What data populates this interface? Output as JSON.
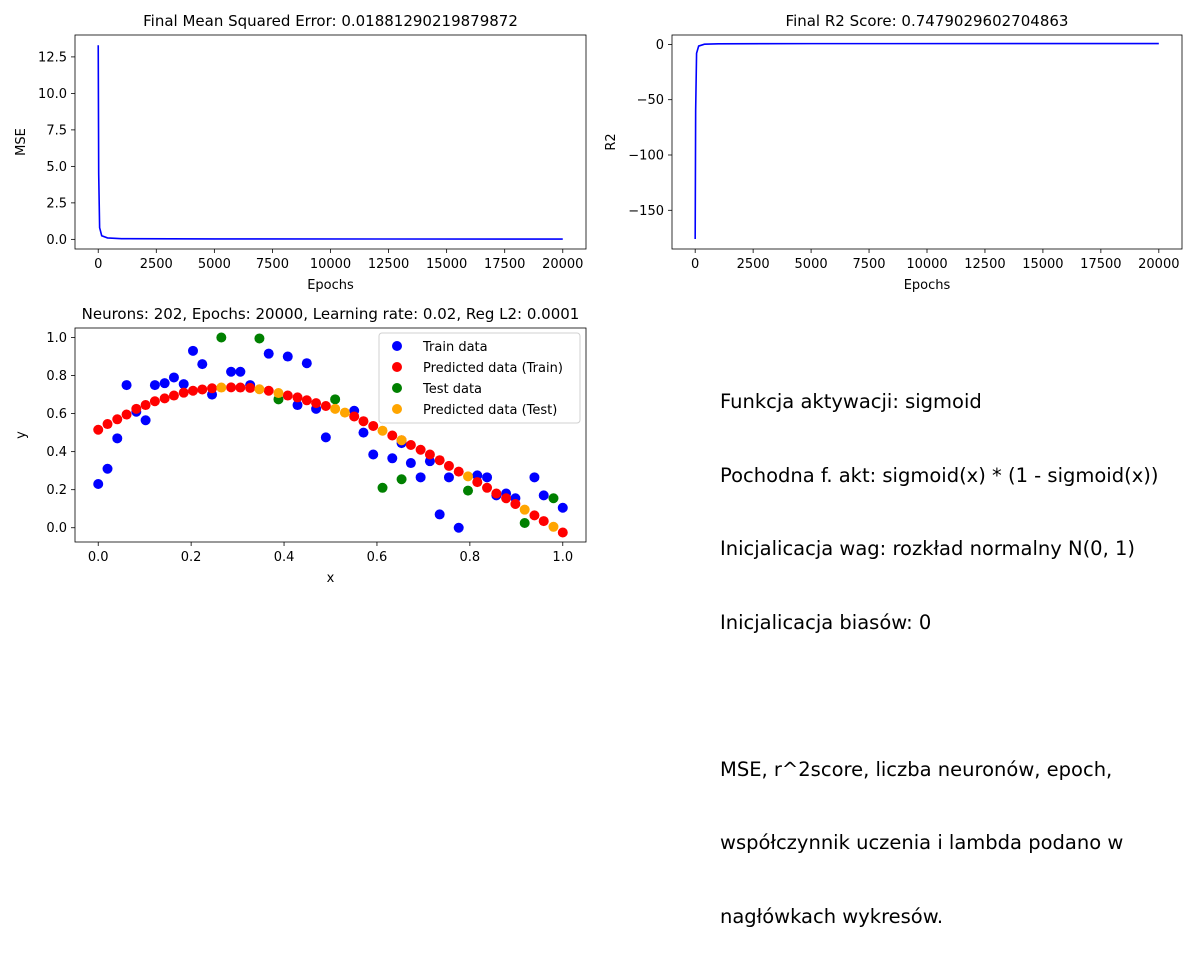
{
  "chart_data": [
    {
      "type": "line",
      "title": "Final Mean Squared Error: 0.01881290219879872",
      "xlabel": "Epochs",
      "ylabel": "MSE",
      "xlim": [
        -1000,
        21000
      ],
      "ylim": [
        -0.66,
        14.0
      ],
      "xticks": [
        0,
        2500,
        5000,
        7500,
        10000,
        12500,
        15000,
        17500,
        20000
      ],
      "yticks": [
        0.0,
        2.5,
        5.0,
        7.5,
        10.0,
        12.5
      ],
      "ytick_labels": [
        "0.0",
        "2.5",
        "5.0",
        "7.5",
        "10.0",
        "12.5"
      ],
      "color": "#0000ff",
      "series": [
        {
          "x": [
            0,
            20,
            60,
            150,
            400,
            1000,
            5000,
            20000
          ],
          "y": [
            13.3,
            4.5,
            0.8,
            0.25,
            0.1,
            0.05,
            0.03,
            0.0188
          ]
        }
      ]
    },
    {
      "type": "line",
      "title": "Final R2 Score: 0.7479029602704863",
      "xlabel": "Epochs",
      "ylabel": "R2",
      "xlim": [
        -1000,
        21000
      ],
      "ylim": [
        -185,
        8.5
      ],
      "xticks": [
        0,
        2500,
        5000,
        7500,
        10000,
        12500,
        15000,
        17500,
        20000
      ],
      "yticks": [
        0,
        -50,
        -100,
        -150
      ],
      "ytick_labels": [
        "0",
        "−50",
        "−100",
        "−150"
      ],
      "color": "#0000ff",
      "series": [
        {
          "x": [
            0,
            20,
            60,
            150,
            400,
            1000,
            5000,
            20000
          ],
          "y": [
            -176,
            -60,
            -8,
            -1.5,
            0.2,
            0.55,
            0.7,
            0.748
          ]
        }
      ]
    },
    {
      "type": "scatter",
      "title": "Neurons: 202, Epochs: 20000, Learning rate: 0.02, Reg L2: 0.0001",
      "xlabel": "x",
      "ylabel": "y",
      "xlim": [
        -0.05,
        1.05
      ],
      "ylim": [
        -0.075,
        1.05
      ],
      "xticks": [
        0.0,
        0.2,
        0.4,
        0.6,
        0.8,
        1.0
      ],
      "yticks": [
        0.0,
        0.2,
        0.4,
        0.6,
        0.8,
        1.0
      ],
      "legend": {
        "placement": "upper right",
        "entries": [
          "Train data",
          "Predicted data (Train)",
          "Test data",
          "Predicted data (Test)"
        ]
      },
      "series": [
        {
          "name": "Train data",
          "color": "#0000ff",
          "points": [
            [
              0.0,
              0.23
            ],
            [
              0.02,
              0.31
            ],
            [
              0.041,
              0.47
            ],
            [
              0.061,
              0.75
            ],
            [
              0.082,
              0.61
            ],
            [
              0.102,
              0.565
            ],
            [
              0.122,
              0.75
            ],
            [
              0.143,
              0.76
            ],
            [
              0.163,
              0.79
            ],
            [
              0.184,
              0.755
            ],
            [
              0.204,
              0.93
            ],
            [
              0.224,
              0.86
            ],
            [
              0.245,
              0.7
            ],
            [
              0.286,
              0.82
            ],
            [
              0.306,
              0.82
            ],
            [
              0.327,
              0.75
            ],
            [
              0.367,
              0.915
            ],
            [
              0.408,
              0.9
            ],
            [
              0.429,
              0.645
            ],
            [
              0.449,
              0.865
            ],
            [
              0.469,
              0.625
            ],
            [
              0.49,
              0.475
            ],
            [
              0.551,
              0.615
            ],
            [
              0.571,
              0.5
            ],
            [
              0.592,
              0.385
            ],
            [
              0.633,
              0.365
            ],
            [
              0.653,
              0.445
            ],
            [
              0.673,
              0.34
            ],
            [
              0.694,
              0.265
            ],
            [
              0.714,
              0.35
            ],
            [
              0.735,
              0.07
            ],
            [
              0.755,
              0.265
            ],
            [
              0.776,
              0.0
            ],
            [
              0.816,
              0.275
            ],
            [
              0.837,
              0.265
            ],
            [
              0.857,
              0.17
            ],
            [
              0.878,
              0.18
            ],
            [
              0.898,
              0.155
            ],
            [
              0.939,
              0.265
            ],
            [
              0.959,
              0.17
            ],
            [
              1.0,
              0.105
            ]
          ]
        },
        {
          "name": "Predicted data (Train)",
          "color": "#ff0000",
          "points": [
            [
              0.0,
              0.515
            ],
            [
              0.02,
              0.545
            ],
            [
              0.041,
              0.57
            ],
            [
              0.061,
              0.595
            ],
            [
              0.082,
              0.625
            ],
            [
              0.102,
              0.645
            ],
            [
              0.122,
              0.665
            ],
            [
              0.143,
              0.68
            ],
            [
              0.163,
              0.695
            ],
            [
              0.184,
              0.71
            ],
            [
              0.204,
              0.72
            ],
            [
              0.224,
              0.727
            ],
            [
              0.245,
              0.733
            ],
            [
              0.286,
              0.738
            ],
            [
              0.306,
              0.737
            ],
            [
              0.327,
              0.735
            ],
            [
              0.367,
              0.72
            ],
            [
              0.408,
              0.695
            ],
            [
              0.429,
              0.685
            ],
            [
              0.449,
              0.67
            ],
            [
              0.469,
              0.655
            ],
            [
              0.49,
              0.64
            ],
            [
              0.551,
              0.585
            ],
            [
              0.571,
              0.56
            ],
            [
              0.592,
              0.535
            ],
            [
              0.633,
              0.485
            ],
            [
              0.653,
              0.46
            ],
            [
              0.673,
              0.435
            ],
            [
              0.694,
              0.41
            ],
            [
              0.714,
              0.385
            ],
            [
              0.735,
              0.355
            ],
            [
              0.755,
              0.325
            ],
            [
              0.776,
              0.295
            ],
            [
              0.816,
              0.24
            ],
            [
              0.837,
              0.21
            ],
            [
              0.857,
              0.18
            ],
            [
              0.878,
              0.155
            ],
            [
              0.898,
              0.125
            ],
            [
              0.939,
              0.065
            ],
            [
              0.959,
              0.035
            ],
            [
              1.0,
              -0.025
            ]
          ]
        },
        {
          "name": "Test data",
          "color": "#008000",
          "points": [
            [
              0.265,
              1.0
            ],
            [
              0.347,
              0.995
            ],
            [
              0.388,
              0.675
            ],
            [
              0.51,
              0.675
            ],
            [
              0.612,
              0.21
            ],
            [
              0.653,
              0.255
            ],
            [
              0.796,
              0.195
            ],
            [
              0.918,
              0.025
            ],
            [
              0.98,
              0.155
            ]
          ]
        },
        {
          "name": "Predicted data (Test)",
          "color": "#ffa500",
          "points": [
            [
              0.265,
              0.737
            ],
            [
              0.347,
              0.728
            ],
            [
              0.388,
              0.708
            ],
            [
              0.51,
              0.625
            ],
            [
              0.531,
              0.605
            ],
            [
              0.612,
              0.51
            ],
            [
              0.653,
              0.46
            ],
            [
              0.796,
              0.27
            ],
            [
              0.918,
              0.095
            ],
            [
              0.98,
              0.005
            ]
          ]
        }
      ]
    }
  ],
  "notes": {
    "line1": "Funkcja aktywacji: sigmoid",
    "line2": "Pochodna f. akt: sigmoid(x) * (1 - sigmoid(x))",
    "line3": "Inicjalicacja wag: rozkład normalny N(0, 1)",
    "line4": "Inicjalicacja biasów: 0",
    "line5": "MSE, r^2score, liczba neuronów, epoch,",
    "line6": "współczynnik uczenia i lambda podano w",
    "line7": "nagłówkach wykresów."
  }
}
